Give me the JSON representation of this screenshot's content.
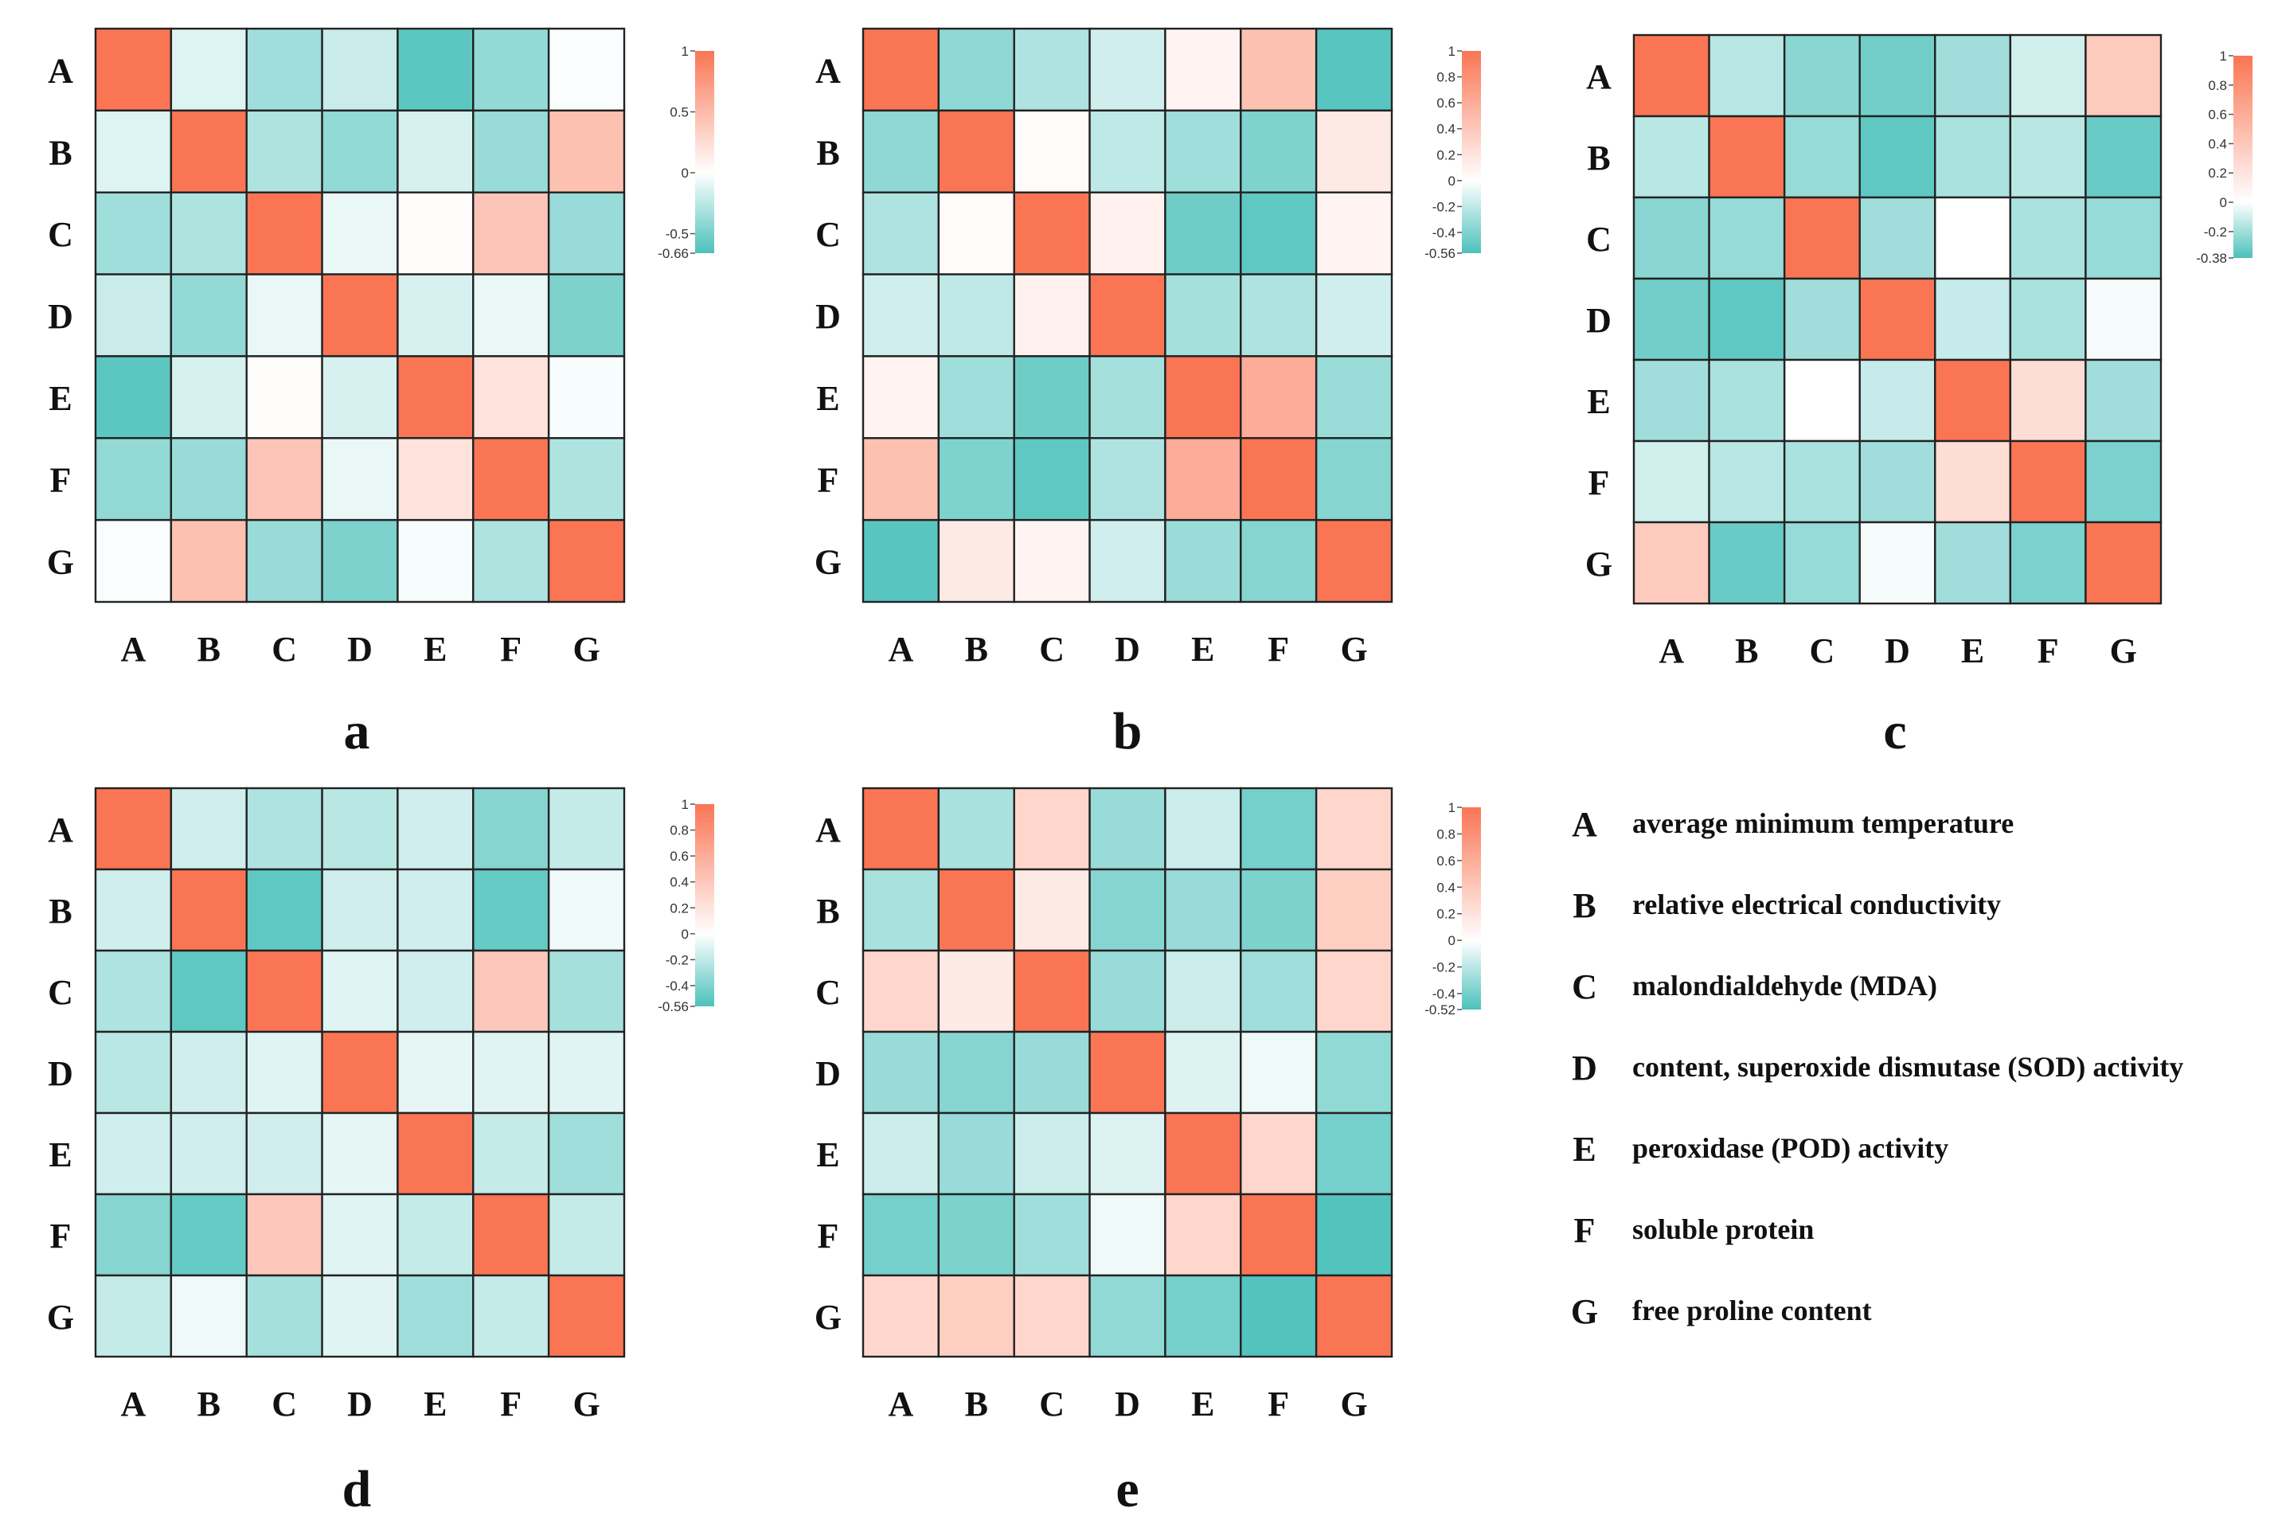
{
  "colors": {
    "positive": "#fa7554",
    "zero": "#ffffff",
    "negative": "#4cc1bb",
    "grid": "#222222"
  },
  "chart_data": [
    {
      "type": "heatmap",
      "panel_label": "a",
      "rows": [
        "A",
        "B",
        "C",
        "D",
        "E",
        "F",
        "G"
      ],
      "columns": [
        "A",
        "B",
        "C",
        "D",
        "E",
        "F",
        "G"
      ],
      "values": [
        [
          1.0,
          -0.12,
          -0.35,
          -0.2,
          -0.6,
          -0.4,
          -0.02
        ],
        [
          -0.12,
          1.0,
          -0.3,
          -0.4,
          -0.15,
          -0.38,
          0.45
        ],
        [
          -0.35,
          -0.3,
          1.0,
          -0.08,
          0.02,
          0.42,
          -0.38
        ],
        [
          -0.2,
          -0.4,
          -0.08,
          1.0,
          -0.15,
          -0.08,
          -0.48
        ],
        [
          -0.6,
          -0.15,
          0.02,
          -0.15,
          1.0,
          0.2,
          -0.03
        ],
        [
          -0.4,
          -0.38,
          0.42,
          -0.08,
          0.2,
          1.0,
          -0.3
        ],
        [
          -0.02,
          0.45,
          -0.38,
          -0.48,
          -0.03,
          -0.3,
          1.0
        ]
      ],
      "colorbar": {
        "min": -0.66,
        "max": 1,
        "ticks": [
          "1",
          "0.5",
          "0",
          "-0.5",
          "-0.66"
        ]
      }
    },
    {
      "type": "heatmap",
      "panel_label": "b",
      "rows": [
        "A",
        "B",
        "C",
        "D",
        "E",
        "F",
        "G"
      ],
      "columns": [
        "A",
        "B",
        "C",
        "D",
        "E",
        "F",
        "G"
      ],
      "values": [
        [
          1.0,
          -0.35,
          -0.25,
          -0.15,
          0.08,
          0.45,
          -0.52
        ],
        [
          -0.35,
          1.0,
          0.03,
          -0.2,
          -0.3,
          -0.4,
          0.15
        ],
        [
          -0.25,
          0.03,
          1.0,
          0.1,
          -0.45,
          -0.5,
          0.08
        ],
        [
          -0.15,
          -0.2,
          0.1,
          1.0,
          -0.28,
          -0.25,
          -0.15
        ],
        [
          0.08,
          -0.3,
          -0.45,
          -0.28,
          1.0,
          0.6,
          -0.32
        ],
        [
          0.45,
          -0.4,
          -0.5,
          -0.25,
          0.6,
          1.0,
          -0.38
        ],
        [
          -0.52,
          0.15,
          0.08,
          -0.15,
          -0.32,
          -0.38,
          1.0
        ]
      ],
      "colorbar": {
        "min": -0.56,
        "max": 1,
        "ticks": [
          "1",
          "0.8",
          "0.6",
          "0.4",
          "0.2",
          "0",
          "-0.2",
          "-0.4",
          "-0.56"
        ]
      }
    },
    {
      "type": "heatmap",
      "panel_label": "c",
      "rows": [
        "A",
        "B",
        "C",
        "D",
        "E",
        "F",
        "G"
      ],
      "columns": [
        "A",
        "B",
        "C",
        "D",
        "E",
        "F",
        "G"
      ],
      "values": [
        [
          1.0,
          -0.15,
          -0.25,
          -0.3,
          -0.2,
          -0.1,
          0.38
        ],
        [
          -0.15,
          1.0,
          -0.22,
          -0.34,
          -0.18,
          -0.15,
          -0.32
        ],
        [
          -0.25,
          -0.22,
          1.0,
          -0.2,
          0.0,
          -0.18,
          -0.22
        ],
        [
          -0.3,
          -0.34,
          -0.2,
          1.0,
          -0.12,
          -0.18,
          -0.02
        ],
        [
          -0.2,
          -0.18,
          0.0,
          -0.12,
          1.0,
          0.25,
          -0.2
        ],
        [
          -0.1,
          -0.15,
          -0.18,
          -0.2,
          0.25,
          1.0,
          -0.28
        ],
        [
          0.38,
          -0.32,
          -0.22,
          -0.02,
          -0.2,
          -0.28,
          1.0
        ]
      ],
      "colorbar": {
        "min": -0.38,
        "max": 1,
        "ticks": [
          "1",
          "0.8",
          "0.6",
          "0.4",
          "0.2",
          "0",
          "-0.2",
          "-0.38"
        ]
      }
    },
    {
      "type": "heatmap",
      "panel_label": "d",
      "rows": [
        "A",
        "B",
        "C",
        "D",
        "E",
        "F",
        "G"
      ],
      "columns": [
        "A",
        "B",
        "C",
        "D",
        "E",
        "F",
        "G"
      ],
      "values": [
        [
          1.0,
          -0.15,
          -0.25,
          -0.22,
          -0.15,
          -0.38,
          -0.18
        ],
        [
          -0.15,
          1.0,
          -0.5,
          -0.15,
          -0.15,
          -0.48,
          -0.05
        ],
        [
          -0.25,
          -0.5,
          1.0,
          -0.1,
          -0.15,
          0.4,
          -0.28
        ],
        [
          -0.22,
          -0.15,
          -0.1,
          1.0,
          -0.08,
          -0.1,
          -0.1
        ],
        [
          -0.15,
          -0.15,
          -0.15,
          -0.08,
          1.0,
          -0.18,
          -0.3
        ],
        [
          -0.38,
          -0.48,
          0.4,
          -0.1,
          -0.18,
          1.0,
          -0.18
        ],
        [
          -0.18,
          -0.05,
          -0.28,
          -0.1,
          -0.3,
          -0.18,
          1.0
        ]
      ],
      "colorbar": {
        "min": -0.56,
        "max": 1,
        "ticks": [
          "1",
          "0.8",
          "0.6",
          "0.4",
          "0.2",
          "0",
          "-0.2",
          "-0.4",
          "-0.56"
        ]
      }
    },
    {
      "type": "heatmap",
      "panel_label": "e",
      "rows": [
        "A",
        "B",
        "C",
        "D",
        "E",
        "F",
        "G"
      ],
      "columns": [
        "A",
        "B",
        "C",
        "D",
        "E",
        "F",
        "G"
      ],
      "values": [
        [
          1.0,
          -0.25,
          0.3,
          -0.3,
          -0.15,
          -0.4,
          0.3
        ],
        [
          -0.25,
          1.0,
          0.15,
          -0.35,
          -0.3,
          -0.38,
          0.35
        ],
        [
          0.3,
          0.15,
          1.0,
          -0.3,
          -0.15,
          -0.28,
          0.3
        ],
        [
          -0.3,
          -0.35,
          -0.3,
          1.0,
          -0.1,
          -0.05,
          -0.32
        ],
        [
          -0.15,
          -0.3,
          -0.15,
          -0.1,
          1.0,
          0.3,
          -0.4
        ],
        [
          -0.4,
          -0.38,
          -0.28,
          -0.05,
          0.3,
          1.0,
          -0.5
        ],
        [
          0.3,
          0.35,
          0.3,
          -0.32,
          -0.4,
          -0.5,
          1.0
        ]
      ],
      "colorbar": {
        "min": -0.52,
        "max": 1,
        "ticks": [
          "1",
          "0.8",
          "0.6",
          "0.4",
          "0.2",
          "0",
          "-0.2",
          "-0.4",
          "-0.52"
        ]
      }
    }
  ],
  "legend": [
    {
      "key": "A",
      "text": "average minimum temperature"
    },
    {
      "key": "B",
      "text": "relative electrical conductivity"
    },
    {
      "key": "C",
      "text": "malondialdehyde (MDA)"
    },
    {
      "key": "D",
      "text": "content, superoxide dismutase (SOD) activity"
    },
    {
      "key": "E",
      "text": "peroxidase (POD) activity"
    },
    {
      "key": "F",
      "text": "soluble protein"
    },
    {
      "key": "G",
      "text": "free proline content"
    }
  ]
}
